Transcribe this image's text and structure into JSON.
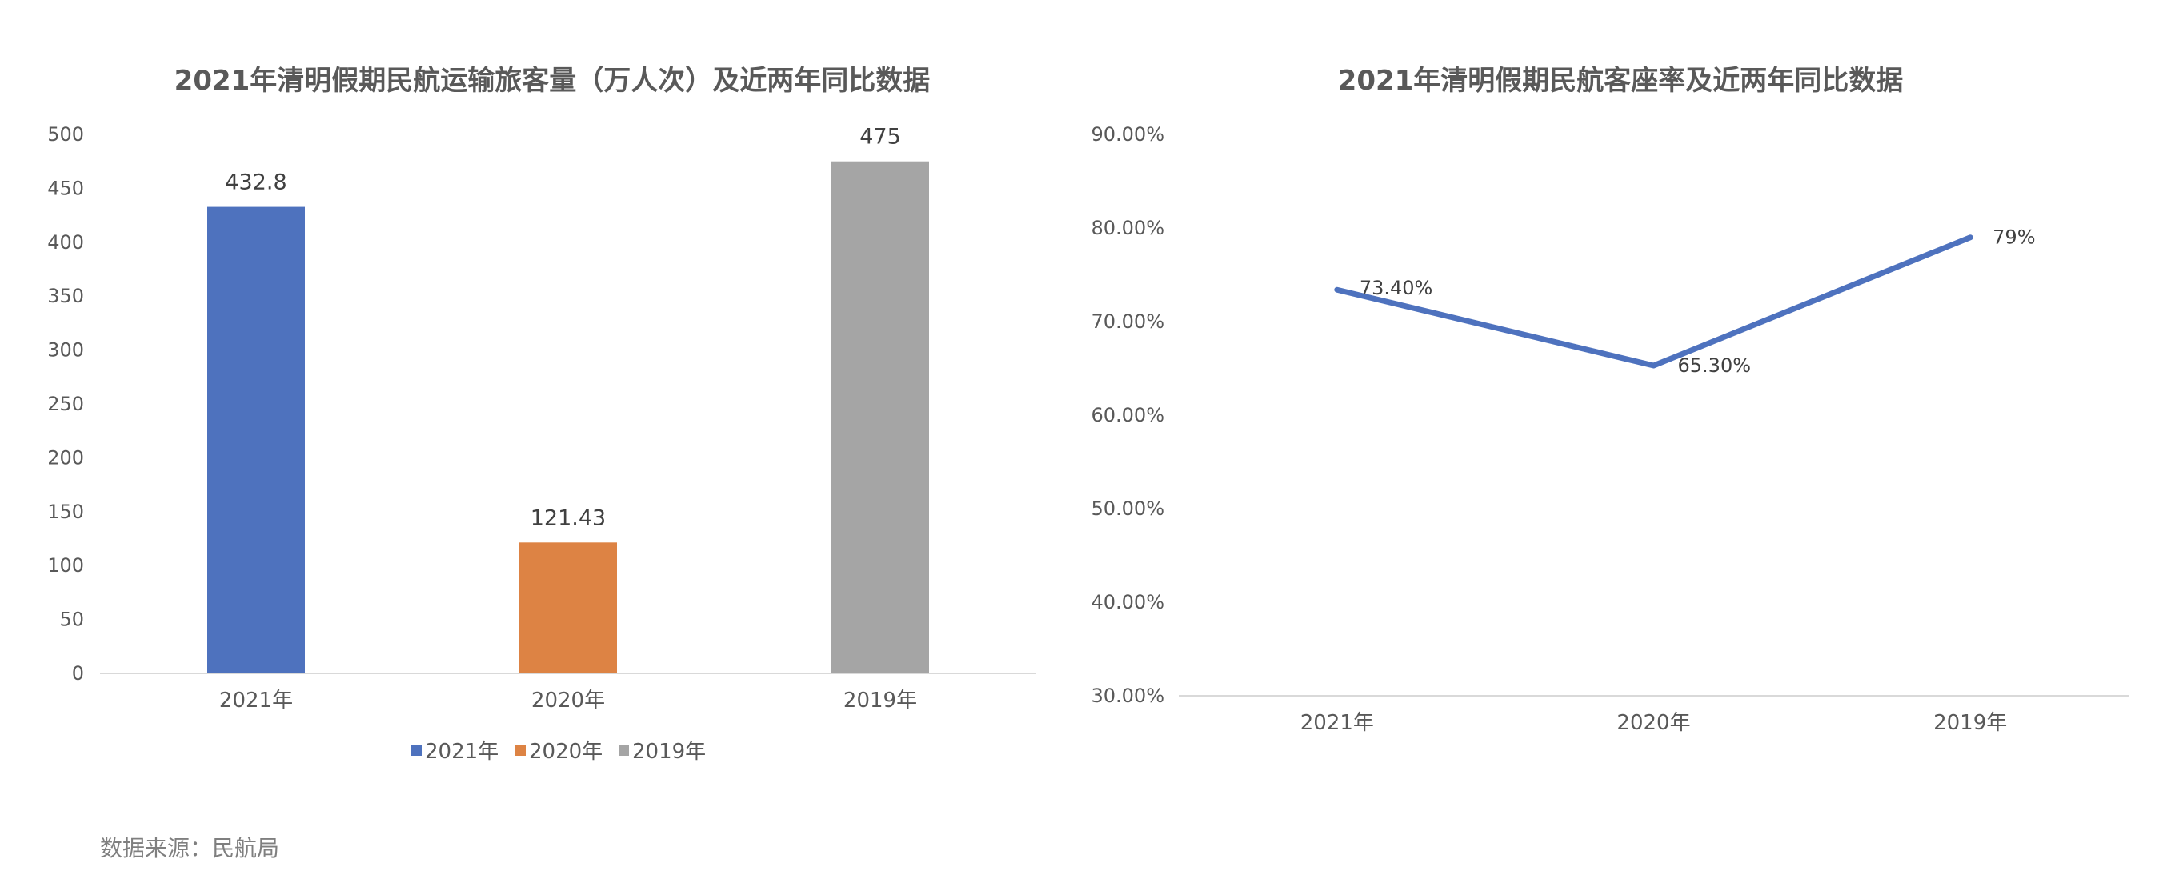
{
  "chart_data": [
    {
      "type": "bar",
      "title": "2021年清明假期民航运输旅客量（万人次）及近两年同比数据",
      "categories": [
        "2021年",
        "2020年",
        "2019年"
      ],
      "values": [
        432.8,
        121.43,
        475
      ],
      "value_labels": [
        "432.8",
        "121.43",
        "475"
      ],
      "colors": [
        "#4E72BE",
        "#DD8344",
        "#A5A5A5"
      ],
      "ylim": [
        0,
        500
      ],
      "yticks": [
        "0",
        "50",
        "100",
        "150",
        "200",
        "250",
        "300",
        "350",
        "400",
        "450",
        "500"
      ],
      "grid": false,
      "legend": {
        "position": "bottom",
        "entries": [
          {
            "label": "2021年",
            "color": "#4E72BE"
          },
          {
            "label": "2020年",
            "color": "#DD8344"
          },
          {
            "label": "2019年",
            "color": "#A5A5A5"
          }
        ]
      }
    },
    {
      "type": "line",
      "title": "2021年清明假期民航客座率及近两年同比数据",
      "categories": [
        "2021年",
        "2020年",
        "2019年"
      ],
      "values": [
        73.4,
        65.3,
        79
      ],
      "value_labels": [
        "73.40%",
        "65.30%",
        "79%"
      ],
      "color": "#4E72BE",
      "ylim": [
        30,
        90
      ],
      "yticks": [
        "30.00%",
        "40.00%",
        "50.00%",
        "60.00%",
        "70.00%",
        "80.00%",
        "90.00%"
      ],
      "grid": false
    }
  ],
  "source_note": "数据来源：民航局"
}
